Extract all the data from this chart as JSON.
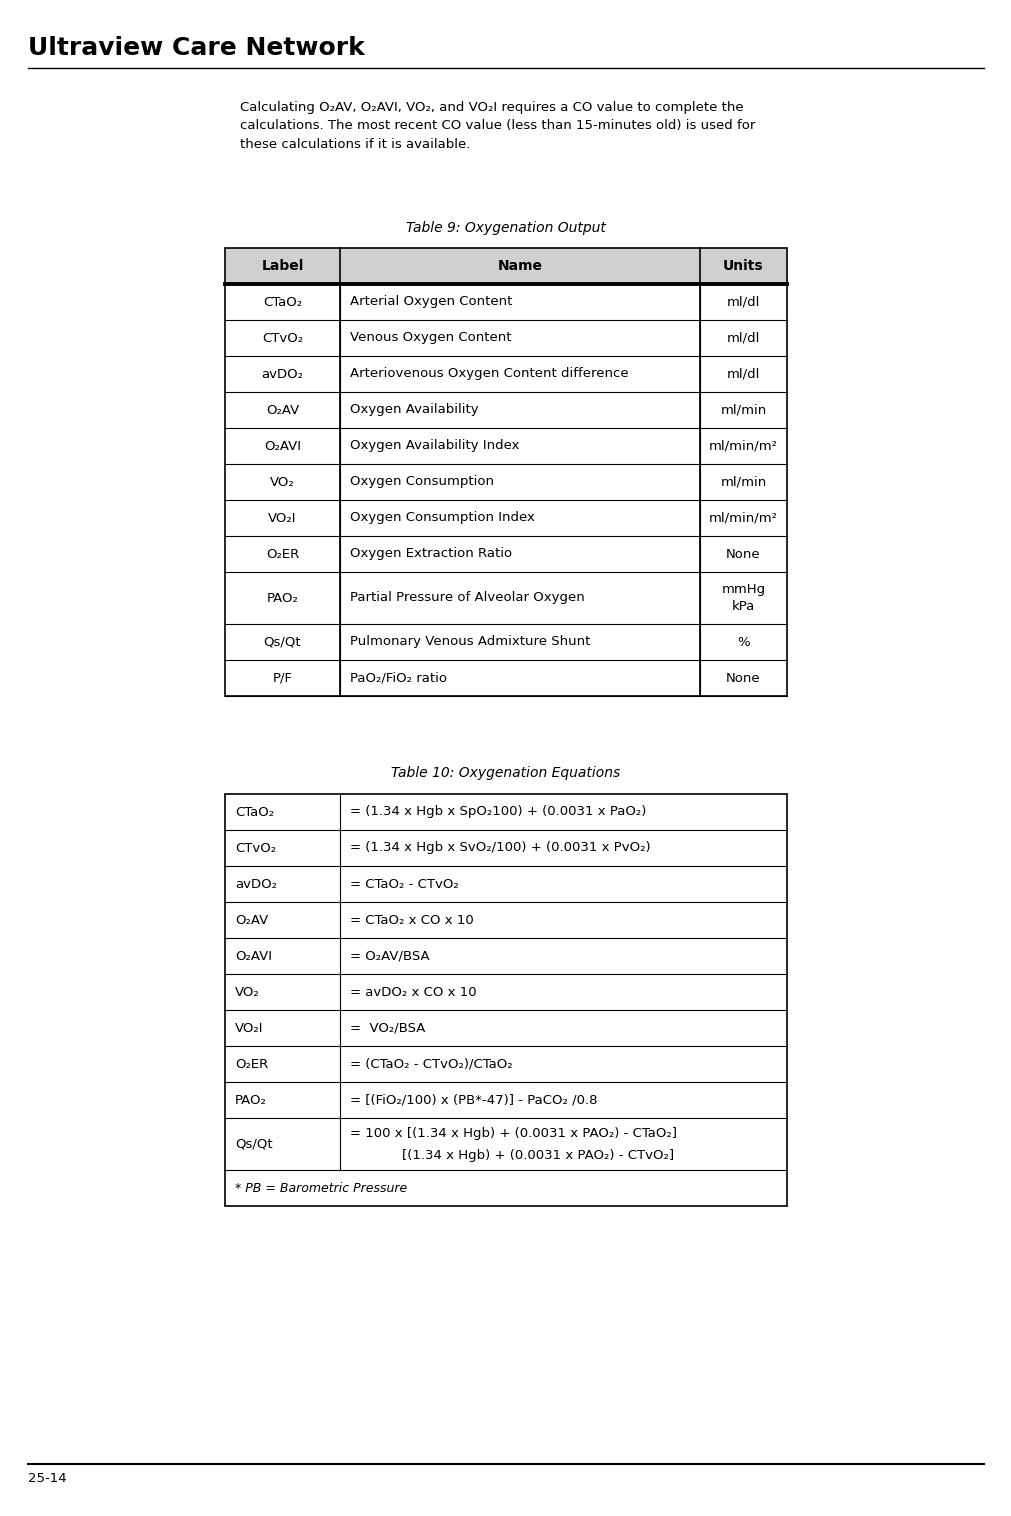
{
  "title": "Ultraview Care Network",
  "page_num": "25-14",
  "intro_text": "Calculating O₂AV, O₂AVI, VO₂, and VO₂I requires a CO value to complete the\ncalculations. The most recent CO value (less than 15-minutes old) is used for\nthese calculations if it is available.",
  "table9_title": "Table 9: Oxygenation Output",
  "table9_headers": [
    "Label",
    "Name",
    "Units"
  ],
  "table9_rows": [
    [
      "CTaO₂",
      "Arterial Oxygen Content",
      "ml/dl"
    ],
    [
      "CTvO₂",
      "Venous Oxygen Content",
      "ml/dl"
    ],
    [
      "avDO₂",
      "Arteriovenous Oxygen Content difference",
      "ml/dl"
    ],
    [
      "O₂AV",
      "Oxygen Availability",
      "ml/min"
    ],
    [
      "O₂AVI",
      "Oxygen Availability Index",
      "ml/min/m²"
    ],
    [
      "VO₂",
      "Oxygen Consumption",
      "ml/min"
    ],
    [
      "VO₂I",
      "Oxygen Consumption Index",
      "ml/min/m²"
    ],
    [
      "O₂ER",
      "Oxygen Extraction Ratio",
      "None"
    ],
    [
      "PAO₂",
      "Partial Pressure of Alveolar Oxygen",
      "mmHg\nkPa"
    ],
    [
      "Qs/Qt",
      "Pulmonary Venous Admixture Shunt",
      "%"
    ],
    [
      "P/F",
      "PaO₂/FiO₂ ratio",
      "None"
    ]
  ],
  "table10_title": "Table 10: Oxygenation Equations",
  "table10_rows": [
    [
      "CTaO₂",
      "= (1.34 x Hgb x SpO₂100) + (0.0031 x PaO₂)"
    ],
    [
      "CTvO₂",
      "= (1.34 x Hgb x SvO₂/100) + (0.0031 x PvO₂)"
    ],
    [
      "avDO₂",
      "= CTaO₂ - CTvO₂"
    ],
    [
      "O₂AV",
      "= CTaO₂ x CO x 10"
    ],
    [
      "O₂AVI",
      "= O₂AV/BSA"
    ],
    [
      "VO₂",
      "= avDO₂ x CO x 10"
    ],
    [
      "VO₂I",
      "=  VO₂/BSA"
    ],
    [
      "O₂ER",
      "= (CTaO₂ - CTvO₂)/CTaO₂"
    ],
    [
      "PAO₂",
      "= [(FiO₂/100) x (PB*-47)] - PaCO₂ /0.8"
    ],
    [
      "Qs/Qt",
      "= 100 x [(1.34 x Hgb) + (0.0031 x PAO₂) - CTaO₂]",
      "[(1.34 x Hgb) + (0.0031 x PAO₂) - CTvO₂]"
    ],
    [
      "* PB = Barometric Pressure",
      "",
      ""
    ]
  ],
  "bg_color": "#ffffff"
}
